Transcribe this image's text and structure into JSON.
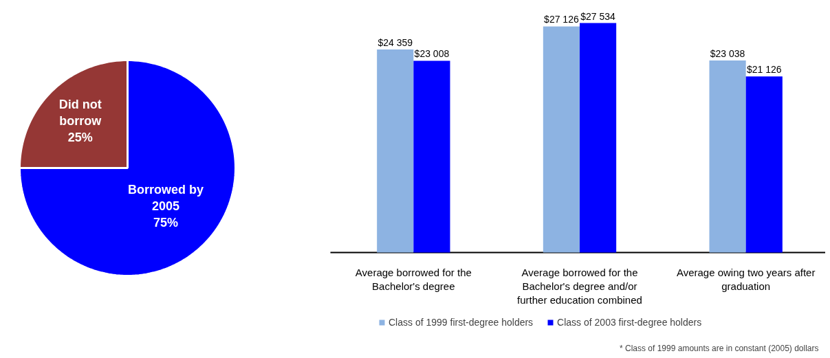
{
  "chart_data": [
    {
      "type": "pie",
      "categories": [
        "Did not borrow",
        "Borrowed by 2005"
      ],
      "values": [
        25,
        75
      ],
      "colors": [
        "#953735",
        "#0000ff"
      ],
      "value_labels": [
        "25%",
        "75%"
      ]
    },
    {
      "type": "bar",
      "categories": [
        "Average borrowed for the Bachelor's degree",
        "Average borrowed for the Bachelor's degree and/or further education combined",
        "Average owing two years after graduation"
      ],
      "series": [
        {
          "name": "Class of 1999 first-degree holders",
          "color": "#8db3e2",
          "values": [
            24359,
            27126,
            23038
          ],
          "value_labels": [
            "$24 359",
            "$27 126",
            "$23 038"
          ]
        },
        {
          "name": "Class of 2003 first-degree holders",
          "color": "#0000ff",
          "values": [
            23008,
            27534,
            21126
          ],
          "value_labels": [
            "$23 008",
            "$27 534",
            "$21 126"
          ]
        }
      ],
      "legend": "bottom",
      "grid": false,
      "annotations": [
        "* Class of 1999 amounts are in constant (2005) dollars"
      ]
    }
  ]
}
